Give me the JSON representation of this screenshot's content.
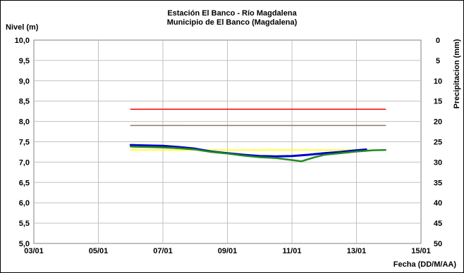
{
  "chart_data": {
    "type": "line",
    "title": "Estación El Banco - Río Magdalena",
    "subtitle": "Municipio de El Banco (Magdalena)",
    "ylabel": "Nivel (m)",
    "y2label": "Precipitacion (mm)",
    "xlabel": "Fecha (DD/M/AA)",
    "ylim": [
      5.0,
      10.0
    ],
    "y2lim": [
      0,
      50
    ],
    "y2_inverted": true,
    "y_ticks": [
      "10,0",
      "9,5",
      "9,0",
      "8,5",
      "8,0",
      "7,5",
      "7,0",
      "6,5",
      "6,0",
      "5,5",
      "5,0"
    ],
    "y2_ticks": [
      "0",
      "5",
      "10",
      "15",
      "20",
      "25",
      "30",
      "35",
      "40",
      "45",
      "50"
    ],
    "x_ticks": [
      "03/01",
      "05/01",
      "07/01",
      "09/01",
      "11/01",
      "13/01",
      "15/01"
    ],
    "x_range_days": [
      3,
      15
    ],
    "grid": true,
    "series": [
      {
        "color": "#ff0000",
        "x": [
          6.0,
          13.9
        ],
        "values": [
          8.3,
          8.3
        ]
      },
      {
        "color": "#8b7b6b",
        "x": [
          6.0,
          13.9
        ],
        "values": [
          7.9,
          7.9
        ]
      },
      {
        "color": "#ffff00",
        "x": [
          6.0,
          13.9
        ],
        "values": [
          7.3,
          7.3
        ]
      },
      {
        "color": "#0000cc",
        "x": [
          6.0,
          6.5,
          7.0,
          7.5,
          8.0,
          8.5,
          9.0,
          9.5,
          10.0,
          10.5,
          11.0,
          11.5,
          12.0,
          12.5,
          13.0,
          13.3
        ],
        "values": [
          7.42,
          7.41,
          7.4,
          7.37,
          7.33,
          7.26,
          7.22,
          7.18,
          7.15,
          7.14,
          7.15,
          7.18,
          7.22,
          7.25,
          7.29,
          7.31
        ]
      },
      {
        "color": "#228b22",
        "x": [
          6.0,
          6.5,
          7.0,
          7.5,
          8.0,
          8.5,
          9.0,
          9.5,
          10.0,
          10.5,
          11.0,
          11.3,
          11.7,
          12.0,
          12.5,
          13.0,
          13.5,
          13.9
        ],
        "values": [
          7.38,
          7.37,
          7.36,
          7.34,
          7.31,
          7.25,
          7.21,
          7.16,
          7.12,
          7.1,
          7.05,
          7.02,
          7.12,
          7.18,
          7.22,
          7.26,
          7.29,
          7.3
        ]
      }
    ]
  }
}
